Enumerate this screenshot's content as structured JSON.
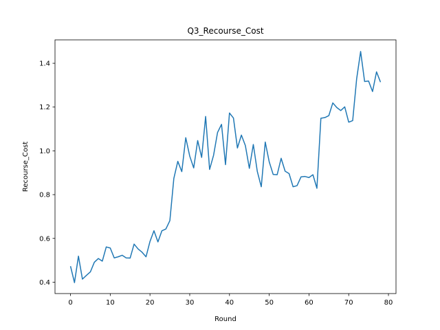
{
  "chart_data": {
    "type": "line",
    "title": "Q3_Recourse_Cost",
    "xlabel": "Round",
    "ylabel": "Recourse_Cost",
    "xlim": [
      -3.9,
      81.9
    ],
    "ylim": [
      0.348,
      1.507
    ],
    "xticks": [
      0,
      10,
      20,
      30,
      40,
      50,
      60,
      70,
      80
    ],
    "yticks": [
      0.4,
      0.6,
      0.8,
      1.0,
      1.2,
      1.4
    ],
    "ytick_labels": [
      "0.4",
      "0.6",
      "0.8",
      "1.0",
      "1.2",
      "1.4"
    ],
    "grid": false,
    "color": "#1f77b4",
    "series": [
      {
        "x": [
          0,
          1,
          2,
          3,
          4,
          5,
          6,
          7,
          8,
          9,
          10,
          11,
          12,
          13,
          14,
          15,
          16,
          17,
          18,
          19,
          20,
          21,
          22,
          23,
          24,
          25,
          26,
          27,
          28,
          29,
          30,
          31,
          32,
          33,
          34,
          35,
          36,
          37,
          38,
          39,
          40,
          41,
          42,
          43,
          44,
          45,
          46,
          47,
          48,
          49,
          50,
          51,
          52,
          53,
          54,
          55,
          56,
          57,
          58,
          59,
          60,
          61,
          62,
          63,
          64,
          65,
          66,
          67,
          68,
          69,
          70,
          71,
          72,
          73,
          74,
          75,
          76,
          77,
          78
        ],
        "values": [
          0.473,
          0.398,
          0.519,
          0.414,
          0.431,
          0.447,
          0.491,
          0.508,
          0.496,
          0.561,
          0.556,
          0.511,
          0.516,
          0.523,
          0.511,
          0.51,
          0.574,
          0.552,
          0.537,
          0.516,
          0.586,
          0.635,
          0.584,
          0.635,
          0.643,
          0.681,
          0.874,
          0.952,
          0.905,
          1.06,
          0.976,
          0.922,
          1.047,
          0.97,
          1.157,
          0.915,
          0.98,
          1.084,
          1.121,
          0.937,
          1.173,
          1.15,
          1.013,
          1.072,
          1.024,
          0.92,
          1.029,
          0.906,
          0.836,
          1.04,
          0.95,
          0.892,
          0.891,
          0.966,
          0.907,
          0.896,
          0.836,
          0.841,
          0.881,
          0.883,
          0.878,
          0.891,
          0.829,
          1.149,
          1.152,
          1.161,
          1.219,
          1.198,
          1.184,
          1.201,
          1.131,
          1.138,
          1.329,
          1.454,
          1.317,
          1.319,
          1.271,
          1.361,
          1.314
        ]
      }
    ]
  }
}
